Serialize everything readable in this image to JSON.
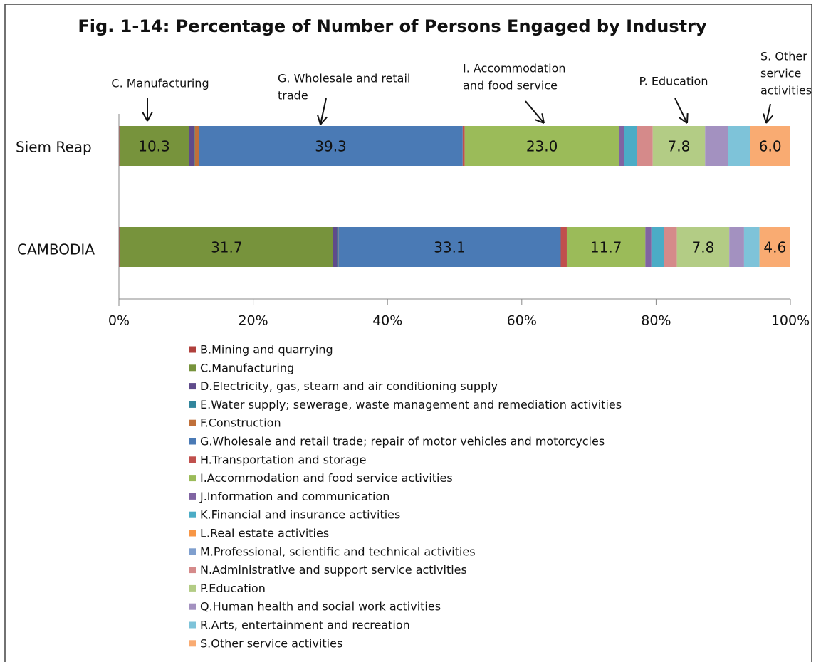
{
  "chart_data": {
    "type": "stacked-bar-horizontal",
    "title": "Fig. 1-14: Percentage of Number of Persons Engaged by Industry",
    "categories": [
      "Siem Reap",
      "CAMBODIA"
    ],
    "xlim": [
      0,
      100
    ],
    "xticks": [
      {
        "value": 0,
        "label": "0%"
      },
      {
        "value": 20,
        "label": "20%"
      },
      {
        "value": 40,
        "label": "40%"
      },
      {
        "value": 60,
        "label": "60%"
      },
      {
        "value": 80,
        "label": "80%"
      },
      {
        "value": 100,
        "label": "100%"
      }
    ],
    "legend": "bottom",
    "series": [
      {
        "name": "B.Mining and quarrying",
        "color": "#b0403c",
        "values": [
          0.1,
          0.2
        ]
      },
      {
        "name": "C.Manufacturing",
        "color": "#77933c",
        "values": [
          10.3,
          31.7
        ],
        "value_labels": [
          "10.3",
          "31.7"
        ]
      },
      {
        "name": "D.Electricity, gas, steam and air conditioning supply",
        "color": "#5f4b8b",
        "values": [
          0.8,
          0.6
        ]
      },
      {
        "name": "E.Water supply; sewerage, waste management and remediation activities",
        "color": "#31859c",
        "values": [
          0.1,
          0.1
        ]
      },
      {
        "name": "F.Construction",
        "color": "#c0703a",
        "values": [
          0.6,
          0.1
        ]
      },
      {
        "name": "G.Wholesale and retail trade; repair of motor vehicles and motorcycles",
        "color": "#4a7ab5",
        "values": [
          39.3,
          33.1
        ],
        "value_labels": [
          "39.3",
          "33.1"
        ]
      },
      {
        "name": "H.Transportation and storage",
        "color": "#c0504d",
        "values": [
          0.3,
          0.9
        ]
      },
      {
        "name": "I.Accommodation and food service activities",
        "color": "#9bbb59",
        "values": [
          23.0,
          11.7
        ],
        "value_labels": [
          "23.0",
          "11.7"
        ]
      },
      {
        "name": "J.Information and communication",
        "color": "#8064a2",
        "values": [
          0.7,
          0.9
        ]
      },
      {
        "name": "K.Financial and insurance activities",
        "color": "#4bacc6",
        "values": [
          1.9,
          1.9
        ]
      },
      {
        "name": "L.Real estate activities",
        "color": "#f79646",
        "values": [
          0,
          0
        ]
      },
      {
        "name": "M.Professional, scientific and technical activities",
        "color": "#7f9fce",
        "values": [
          0.1,
          0
        ]
      },
      {
        "name": "N.Administrative and support service activities",
        "color": "#d58a8a",
        "values": [
          2.3,
          1.9
        ]
      },
      {
        "name": "P.Education",
        "color": "#b3cc85",
        "values": [
          7.8,
          7.8
        ],
        "value_labels": [
          "7.8",
          "7.8"
        ]
      },
      {
        "name": "Q.Human health and social work activities",
        "color": "#a391c0",
        "values": [
          3.4,
          2.2
        ]
      },
      {
        "name": "R.Arts, entertainment and recreation",
        "color": "#7ec3d9",
        "values": [
          3.3,
          2.3
        ]
      },
      {
        "name": "S.Other service activities",
        "color": "#f9ab72",
        "values": [
          6.0,
          4.6
        ],
        "value_labels": [
          "6.0",
          "4.6"
        ]
      }
    ],
    "annotations": [
      {
        "lines": [
          "C. Manufacturing"
        ]
      },
      {
        "lines": [
          "G. Wholesale and retail",
          "trade"
        ]
      },
      {
        "lines": [
          "I. Accommodation",
          "and food service"
        ]
      },
      {
        "lines": [
          "P. Education"
        ]
      },
      {
        "lines": [
          "S. Other",
          "service",
          "activities"
        ]
      }
    ]
  }
}
